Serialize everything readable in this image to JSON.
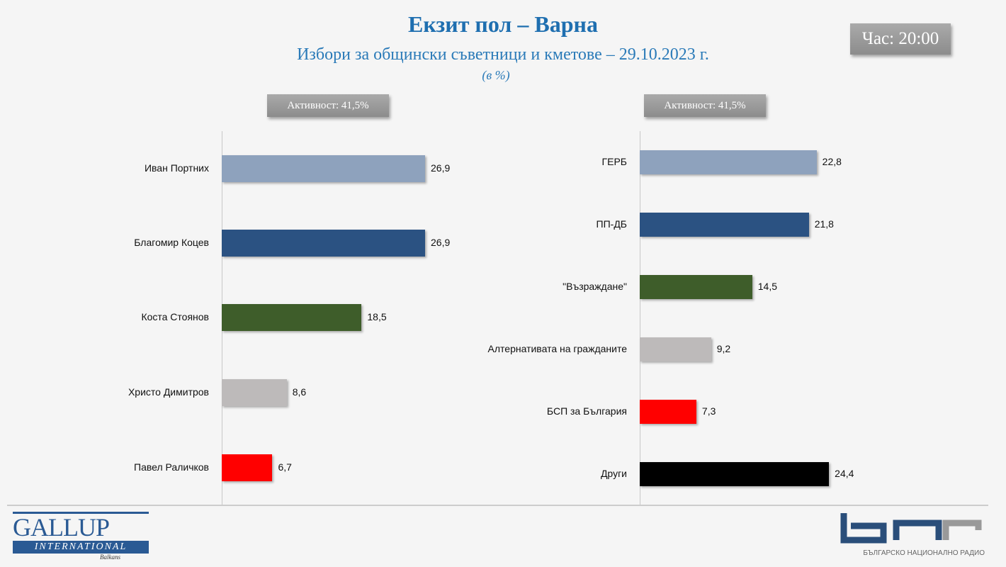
{
  "header": {
    "title": "Екзит пол – Варна",
    "subtitle": "Избори за общински съветници и кметове – 29.10.2023 г.",
    "unit": "(в %)",
    "time_badge": "Час: 20:00"
  },
  "chart_data": [
    {
      "type": "bar",
      "orientation": "horizontal",
      "badge": "Активност: 41,5%",
      "categories": [
        "Иван Портних",
        "Благомир Коцев",
        "Коста Стоянов",
        "Христо Димитров",
        "Павел Раличков"
      ],
      "values": [
        26.9,
        26.9,
        18.5,
        8.6,
        6.7
      ],
      "value_labels": [
        "26,9",
        "26,9",
        "18,5",
        "8,6",
        "6,7"
      ],
      "colors": [
        "#8ea2bd",
        "#2b5282",
        "#3e5d2a",
        "#bdbaba",
        "#ff0000"
      ],
      "xlim": [
        0,
        30
      ]
    },
    {
      "type": "bar",
      "orientation": "horizontal",
      "badge": "Активност: 41,5%",
      "categories": [
        "ГЕРБ",
        "ПП-ДБ",
        "\"Възраждане\"",
        "Алтернативата на гражданите",
        "БСП за България",
        "Други"
      ],
      "values": [
        22.8,
        21.8,
        14.5,
        9.2,
        7.3,
        24.4
      ],
      "value_labels": [
        "22,8",
        "21,8",
        "14,5",
        "9,2",
        "7,3",
        "24,4"
      ],
      "colors": [
        "#8ea2bd",
        "#2b5282",
        "#3e5d2a",
        "#bdbaba",
        "#ff0000",
        "#000000"
      ],
      "xlim": [
        0,
        30
      ]
    }
  ],
  "footer": {
    "gallup_logo": "GALLUP INTERNATIONAL Balkans",
    "bnr_logo": "БНР",
    "bnr_caption": "БЪЛГАРСКО НАЦИОНАЛНО РАДИО"
  }
}
